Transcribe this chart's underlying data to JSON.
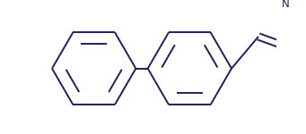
{
  "background_color": "#ffffff",
  "line_color": "#1f1f5e",
  "line_width": 1.4,
  "text_color": "#1f1f5e",
  "font_size_n": 8.5,
  "font_size_oh": 8.5,
  "font_size_o": 8.5
}
